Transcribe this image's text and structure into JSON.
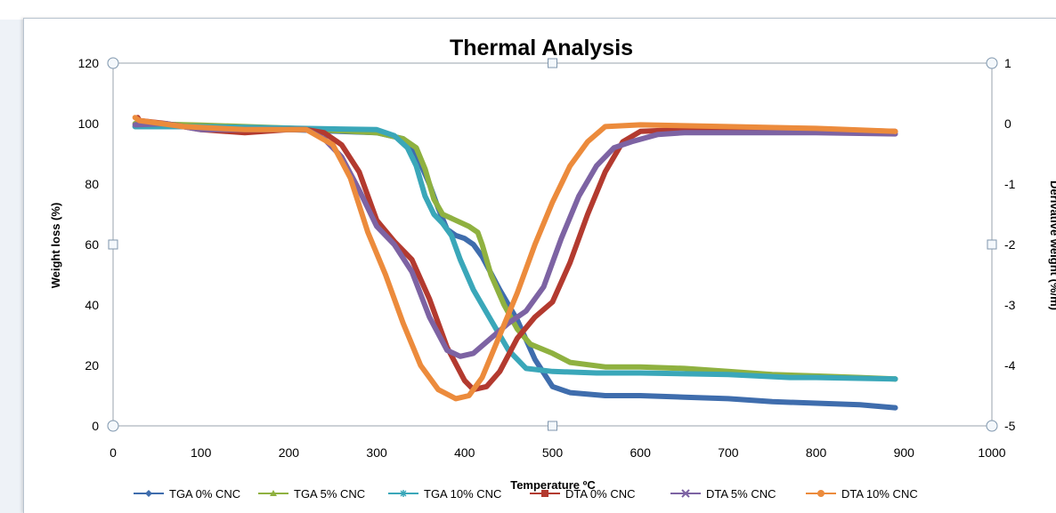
{
  "chart_data": {
    "type": "line",
    "title": "Thermal Analysis",
    "xlabel": "Temperature ºC",
    "ylabel": "Weight loss  (%)",
    "y2label": "Derivative weight (%/m)",
    "xlim": [
      0,
      1000
    ],
    "ylim": [
      0,
      120
    ],
    "y2lim": [
      -5,
      1
    ],
    "xticks": [
      "0",
      "100",
      "200",
      "300",
      "400",
      "500",
      "600",
      "700",
      "800",
      "900",
      "1000"
    ],
    "yticks": [
      "0",
      "20",
      "40",
      "60",
      "80",
      "100",
      "120"
    ],
    "y2ticks": [
      "-5",
      "-4",
      "-3",
      "-2",
      "-1",
      "0",
      "1"
    ],
    "grid": false,
    "legend_position": "bottom",
    "series": [
      {
        "name": "TGA 0% CNC",
        "axis": "left",
        "color": "#3f6dad",
        "marker": "diamond",
        "points": [
          [
            25,
            99
          ],
          [
            100,
            99
          ],
          [
            200,
            98
          ],
          [
            300,
            97
          ],
          [
            330,
            95
          ],
          [
            345,
            90
          ],
          [
            360,
            80
          ],
          [
            370,
            72
          ],
          [
            380,
            65
          ],
          [
            390,
            63
          ],
          [
            400,
            62
          ],
          [
            410,
            60
          ],
          [
            420,
            56
          ],
          [
            440,
            45
          ],
          [
            460,
            35
          ],
          [
            480,
            22
          ],
          [
            500,
            13
          ],
          [
            520,
            11
          ],
          [
            560,
            10
          ],
          [
            600,
            10
          ],
          [
            650,
            9.5
          ],
          [
            700,
            9
          ],
          [
            750,
            8
          ],
          [
            800,
            7.5
          ],
          [
            850,
            7
          ],
          [
            890,
            6
          ]
        ]
      },
      {
        "name": "TGA 5% CNC",
        "axis": "left",
        "color": "#8fb140",
        "marker": "triangle",
        "points": [
          [
            25,
            100
          ],
          [
            100,
            99.5
          ],
          [
            200,
            98.5
          ],
          [
            300,
            97
          ],
          [
            330,
            95
          ],
          [
            345,
            92
          ],
          [
            355,
            85
          ],
          [
            365,
            75
          ],
          [
            375,
            70
          ],
          [
            390,
            68
          ],
          [
            405,
            66
          ],
          [
            415,
            64
          ],
          [
            420,
            60
          ],
          [
            430,
            50
          ],
          [
            445,
            40
          ],
          [
            460,
            32
          ],
          [
            475,
            27
          ],
          [
            500,
            24
          ],
          [
            520,
            21
          ],
          [
            560,
            19.5
          ],
          [
            600,
            19.5
          ],
          [
            650,
            19
          ],
          [
            700,
            18
          ],
          [
            750,
            17
          ],
          [
            800,
            16.5
          ],
          [
            850,
            16
          ],
          [
            890,
            15.5
          ]
        ]
      },
      {
        "name": "TGA 10% CNC",
        "axis": "left",
        "color": "#3aa7b9",
        "marker": "star",
        "points": [
          [
            25,
            99
          ],
          [
            100,
            99
          ],
          [
            200,
            98.5
          ],
          [
            300,
            98
          ],
          [
            320,
            96
          ],
          [
            335,
            92
          ],
          [
            345,
            86
          ],
          [
            355,
            76
          ],
          [
            365,
            70
          ],
          [
            375,
            67
          ],
          [
            385,
            63
          ],
          [
            395,
            55
          ],
          [
            410,
            45
          ],
          [
            430,
            35
          ],
          [
            450,
            25
          ],
          [
            470,
            19
          ],
          [
            500,
            18
          ],
          [
            550,
            17.5
          ],
          [
            600,
            17.5
          ],
          [
            700,
            17
          ],
          [
            770,
            16
          ],
          [
            800,
            16
          ],
          [
            890,
            15.5
          ]
        ]
      },
      {
        "name": "DTA 0% CNC",
        "axis": "right",
        "color": "#b33a2f",
        "marker": "square",
        "points": [
          [
            28,
            0.1
          ],
          [
            30,
            0.05
          ],
          [
            60,
            0.0
          ],
          [
            100,
            -0.1
          ],
          [
            150,
            -0.15
          ],
          [
            200,
            -0.1
          ],
          [
            220,
            -0.1
          ],
          [
            240,
            -0.15
          ],
          [
            260,
            -0.35
          ],
          [
            280,
            -0.8
          ],
          [
            300,
            -1.6
          ],
          [
            320,
            -1.95
          ],
          [
            340,
            -2.25
          ],
          [
            360,
            -2.9
          ],
          [
            380,
            -3.7
          ],
          [
            400,
            -4.25
          ],
          [
            410,
            -4.4
          ],
          [
            425,
            -4.35
          ],
          [
            440,
            -4.1
          ],
          [
            460,
            -3.55
          ],
          [
            480,
            -3.2
          ],
          [
            500,
            -2.95
          ],
          [
            520,
            -2.3
          ],
          [
            540,
            -1.5
          ],
          [
            560,
            -0.8
          ],
          [
            580,
            -0.3
          ],
          [
            600,
            -0.13
          ],
          [
            650,
            -0.1
          ],
          [
            700,
            -0.1
          ],
          [
            800,
            -0.1
          ],
          [
            890,
            -0.13
          ]
        ]
      },
      {
        "name": "DTA 5% CNC",
        "axis": "right",
        "color": "#7d63a3",
        "marker": "x",
        "points": [
          [
            25,
            -0.02
          ],
          [
            60,
            0.0
          ],
          [
            100,
            -0.1
          ],
          [
            150,
            -0.1
          ],
          [
            220,
            -0.1
          ],
          [
            240,
            -0.25
          ],
          [
            260,
            -0.55
          ],
          [
            280,
            -1.1
          ],
          [
            300,
            -1.7
          ],
          [
            320,
            -2.0
          ],
          [
            340,
            -2.45
          ],
          [
            360,
            -3.2
          ],
          [
            380,
            -3.75
          ],
          [
            395,
            -3.85
          ],
          [
            410,
            -3.8
          ],
          [
            430,
            -3.55
          ],
          [
            450,
            -3.3
          ],
          [
            470,
            -3.1
          ],
          [
            490,
            -2.7
          ],
          [
            510,
            -1.9
          ],
          [
            530,
            -1.2
          ],
          [
            550,
            -0.7
          ],
          [
            570,
            -0.4
          ],
          [
            590,
            -0.3
          ],
          [
            620,
            -0.18
          ],
          [
            650,
            -0.15
          ],
          [
            700,
            -0.15
          ],
          [
            800,
            -0.15
          ],
          [
            890,
            -0.17
          ]
        ]
      },
      {
        "name": "DTA 10% CNC",
        "axis": "right",
        "color": "#ec8b3c",
        "marker": "circle",
        "points": [
          [
            25,
            0.1
          ],
          [
            30,
            0.05
          ],
          [
            80,
            -0.05
          ],
          [
            150,
            -0.1
          ],
          [
            220,
            -0.1
          ],
          [
            250,
            -0.35
          ],
          [
            270,
            -0.9
          ],
          [
            290,
            -1.8
          ],
          [
            310,
            -2.5
          ],
          [
            330,
            -3.3
          ],
          [
            350,
            -4.0
          ],
          [
            370,
            -4.4
          ],
          [
            390,
            -4.55
          ],
          [
            405,
            -4.5
          ],
          [
            420,
            -4.2
          ],
          [
            440,
            -3.5
          ],
          [
            460,
            -2.8
          ],
          [
            480,
            -2.0
          ],
          [
            500,
            -1.3
          ],
          [
            520,
            -0.7
          ],
          [
            540,
            -0.3
          ],
          [
            560,
            -0.05
          ],
          [
            600,
            -0.02
          ],
          [
            700,
            -0.05
          ],
          [
            800,
            -0.08
          ],
          [
            890,
            -0.13
          ]
        ]
      }
    ]
  }
}
